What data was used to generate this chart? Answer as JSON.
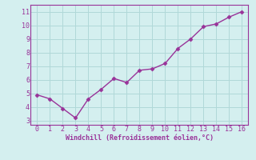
{
  "x": [
    0,
    1,
    2,
    3,
    4,
    5,
    6,
    7,
    8,
    9,
    10,
    11,
    12,
    13,
    14,
    15,
    16
  ],
  "y": [
    4.9,
    4.6,
    3.9,
    3.2,
    4.6,
    5.3,
    6.1,
    5.8,
    6.7,
    6.8,
    7.2,
    8.3,
    9.0,
    9.9,
    10.1,
    10.6,
    11.0
  ],
  "line_color": "#993399",
  "marker": "D",
  "marker_size": 2.5,
  "background_color": "#d4efef",
  "grid_color": "#b0d8d8",
  "xlabel": "Windchill (Refroidissement éolien,°C)",
  "xlabel_color": "#993399",
  "tick_color": "#993399",
  "xlim": [
    -0.5,
    16.5
  ],
  "ylim": [
    2.7,
    11.5
  ],
  "xticks": [
    0,
    1,
    2,
    3,
    4,
    5,
    6,
    7,
    8,
    9,
    10,
    11,
    12,
    13,
    14,
    15,
    16
  ],
  "yticks": [
    3,
    4,
    5,
    6,
    7,
    8,
    9,
    10,
    11
  ],
  "spine_color": "#993399",
  "linewidth": 1.0,
  "xlabel_fontsize": 6.0,
  "tick_fontsize": 6.0
}
